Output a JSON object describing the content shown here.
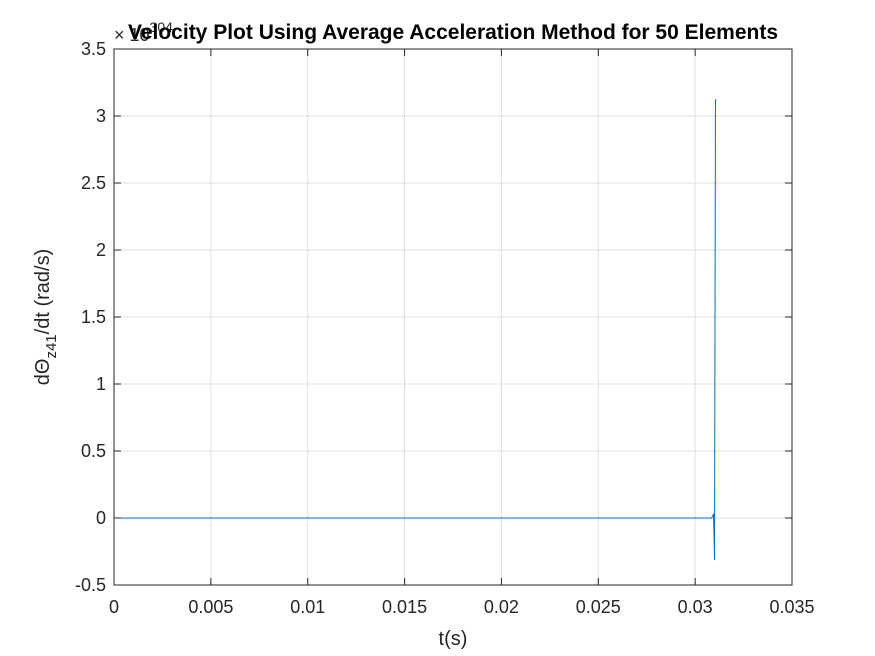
{
  "chart_data": {
    "type": "line",
    "title": "Velocity Plot Using Average Acceleration Method for 50 Elements",
    "xlabel": "t(s)",
    "ylabel": {
      "prefix": "dΘ",
      "subscript": "z41",
      "suffix": "/dt  (rad/s)"
    },
    "y_exponent_label": {
      "base": "× 10",
      "power": "304"
    },
    "xlim": [
      0,
      0.035
    ],
    "ylim": [
      -0.5,
      3.5
    ],
    "x_ticks": [
      "0",
      "0.005",
      "0.01",
      "0.015",
      "0.02",
      "0.025",
      "0.03",
      "0.035"
    ],
    "x_tick_values": [
      0,
      0.005,
      0.01,
      0.015,
      0.02,
      0.025,
      0.03,
      0.035
    ],
    "y_ticks": [
      "-0.5",
      "0",
      "0.5",
      "1",
      "1.5",
      "2",
      "2.5",
      "3",
      "3.5"
    ],
    "y_tick_values": [
      -0.5,
      0,
      0.5,
      1,
      1.5,
      2,
      2.5,
      3,
      3.5
    ],
    "grid": true,
    "series": [
      {
        "color": "#0072bd",
        "x": [
          0,
          0.005,
          0.01,
          0.015,
          0.02,
          0.025,
          0.0305,
          0.03085,
          0.03095,
          0.031,
          0.03105,
          0.0311
        ],
        "y": [
          0,
          0,
          0,
          0,
          0,
          0,
          0,
          0.0,
          0.03,
          -0.31,
          3.12,
          3.12
        ]
      }
    ]
  }
}
